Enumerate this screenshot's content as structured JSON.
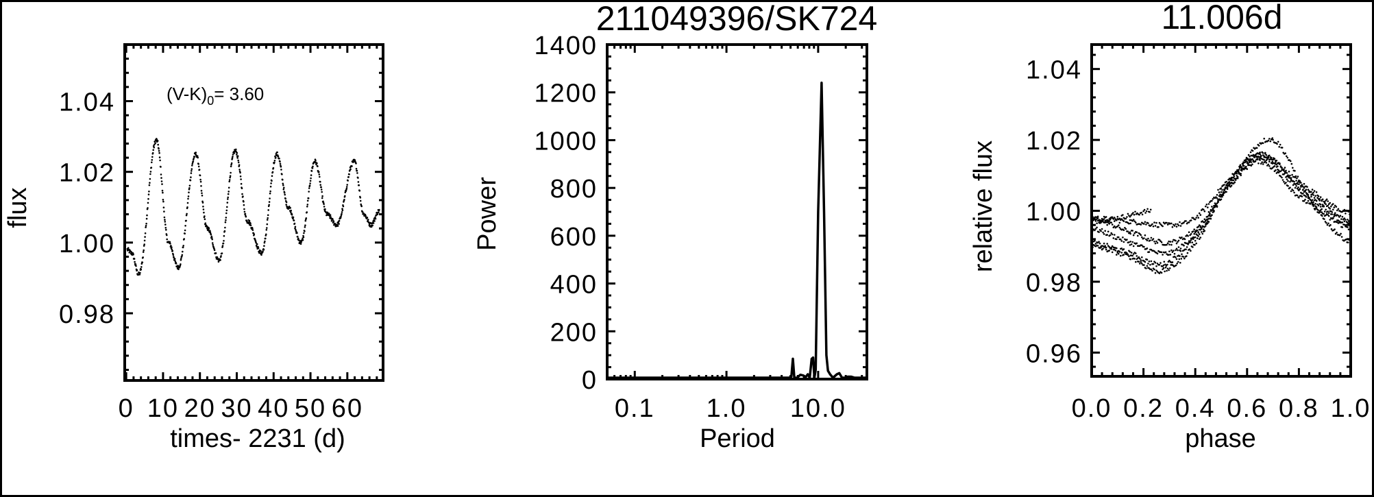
{
  "colors": {
    "ink": "#000000",
    "background": "#ffffff"
  },
  "chart_data": [
    {
      "type": "scatter",
      "title": "",
      "xlabel": "times- 2231 (d)",
      "ylabel": "flux",
      "annotation": {
        "prefix": "(V-K)",
        "subscript": "0",
        "suffix": "= 3.60"
      },
      "xlim": [
        -0.4,
        69.7
      ],
      "ylim": [
        0.961,
        1.056
      ],
      "xticks": [
        0,
        10,
        20,
        30,
        40,
        50,
        60
      ],
      "xtick_labels": [
        "0",
        "10",
        "20",
        "30",
        "40",
        "50",
        "60"
      ],
      "yticks": [
        0.98,
        1.0,
        1.02,
        1.04
      ],
      "ytick_labels": [
        "0.98",
        "1.00",
        "1.02",
        "1.04"
      ],
      "grid": false,
      "extrema_time_flux": [
        [
          0.3,
          0.998
        ],
        [
          1.5,
          0.997
        ],
        [
          3.4,
          0.991
        ],
        [
          8.2,
          1.029
        ],
        [
          11.5,
          1.0
        ],
        [
          14.1,
          0.993
        ],
        [
          18.9,
          1.025
        ],
        [
          22.0,
          1.004
        ],
        [
          25.2,
          0.995
        ],
        [
          29.6,
          1.026
        ],
        [
          33.0,
          1.006
        ],
        [
          36.7,
          0.997
        ],
        [
          40.9,
          1.025
        ],
        [
          44.0,
          1.01
        ],
        [
          47.4,
          1.0
        ],
        [
          51.2,
          1.023
        ],
        [
          54.5,
          1.008
        ],
        [
          57.1,
          1.005
        ],
        [
          61.9,
          1.023
        ],
        [
          64.5,
          1.008
        ],
        [
          66.4,
          1.005
        ],
        [
          68.7,
          1.009
        ]
      ]
    },
    {
      "type": "line",
      "title": "211049396/SK724",
      "xlabel": "Period",
      "ylabel": "Power",
      "xscale": "log",
      "xlim": [
        0.05,
        34
      ],
      "ylim": [
        0,
        1400
      ],
      "xticks": [
        0.1,
        1.0,
        10.0
      ],
      "xtick_labels": [
        "0.1",
        "1.0",
        "10.0"
      ],
      "yticks": [
        0,
        200,
        400,
        600,
        800,
        1000,
        1200,
        1400
      ],
      "ytick_labels": [
        "0",
        "200",
        "400",
        "600",
        "800",
        "1000",
        "1200",
        "1400"
      ],
      "grid": false,
      "points": [
        [
          0.05,
          0
        ],
        [
          4.8,
          0
        ],
        [
          5.1,
          10
        ],
        [
          5.3,
          85
        ],
        [
          5.5,
          5
        ],
        [
          5.9,
          0
        ],
        [
          6.4,
          18
        ],
        [
          6.9,
          15
        ],
        [
          7.3,
          8
        ],
        [
          7.7,
          20
        ],
        [
          8.1,
          5
        ],
        [
          8.5,
          85
        ],
        [
          8.8,
          90
        ],
        [
          9.1,
          5
        ],
        [
          9.4,
          40
        ],
        [
          10.0,
          700
        ],
        [
          10.9,
          1240
        ],
        [
          11.6,
          700
        ],
        [
          12.3,
          100
        ],
        [
          12.8,
          35
        ],
        [
          13.5,
          20
        ],
        [
          14.5,
          0
        ],
        [
          16.0,
          20
        ],
        [
          17.0,
          25
        ],
        [
          18.2,
          5
        ],
        [
          19.5,
          0
        ],
        [
          21.0,
          10
        ],
        [
          23.0,
          10
        ],
        [
          25.0,
          0
        ],
        [
          34.0,
          0
        ]
      ]
    },
    {
      "type": "scatter",
      "title": "11.006d",
      "xlabel": "phase",
      "ylabel": "relative flux",
      "xlim": [
        0.0,
        1.0
      ],
      "ylim": [
        0.9533,
        1.0469
      ],
      "xticks": [
        0.0,
        0.2,
        0.4,
        0.6,
        0.8,
        1.0
      ],
      "xtick_labels": [
        "0.0",
        "0.2",
        "0.4",
        "0.6",
        "0.8",
        "1.0"
      ],
      "yticks": [
        0.96,
        0.98,
        1.0,
        1.02,
        1.04
      ],
      "ytick_labels": [
        "0.96",
        "0.98",
        "1.00",
        "1.02",
        "1.04"
      ],
      "grid": false,
      "strands_phase_flux": [
        [
          [
            0.0,
            0.997
          ],
          [
            0.1,
            0.998
          ],
          [
            0.23,
            1.0
          ]
        ],
        [
          [
            0.0,
            0.998
          ],
          [
            0.15,
            0.997
          ],
          [
            0.3,
            0.996
          ],
          [
            0.4,
            0.998
          ],
          [
            0.52,
            1.008
          ],
          [
            0.65,
            1.016
          ],
          [
            0.8,
            1.008
          ],
          [
            1.0,
            0.999
          ]
        ],
        [
          [
            0.0,
            0.998
          ],
          [
            0.15,
            0.994
          ],
          [
            0.3,
            0.991
          ],
          [
            0.42,
            0.996
          ],
          [
            0.52,
            1.007
          ],
          [
            0.65,
            1.016
          ],
          [
            0.8,
            1.007
          ],
          [
            1.0,
            0.997
          ]
        ],
        [
          [
            0.0,
            0.995
          ],
          [
            0.15,
            0.991
          ],
          [
            0.3,
            0.988
          ],
          [
            0.42,
            0.995
          ],
          [
            0.52,
            1.006
          ],
          [
            0.65,
            1.015
          ],
          [
            0.8,
            1.006
          ],
          [
            1.0,
            0.996
          ]
        ],
        [
          [
            0.0,
            0.991
          ],
          [
            0.15,
            0.988
          ],
          [
            0.28,
            0.985
          ],
          [
            0.42,
            0.994
          ],
          [
            0.52,
            1.006
          ],
          [
            0.65,
            1.014
          ],
          [
            0.8,
            1.004
          ],
          [
            1.0,
            0.995
          ]
        ],
        [
          [
            0.0,
            0.99
          ],
          [
            0.15,
            0.987
          ],
          [
            0.27,
            0.983
          ],
          [
            0.4,
            0.991
          ],
          [
            0.55,
            1.01
          ],
          [
            0.7,
            1.02
          ],
          [
            0.85,
            1.002
          ],
          [
            1.0,
            0.991
          ]
        ]
      ]
    }
  ]
}
